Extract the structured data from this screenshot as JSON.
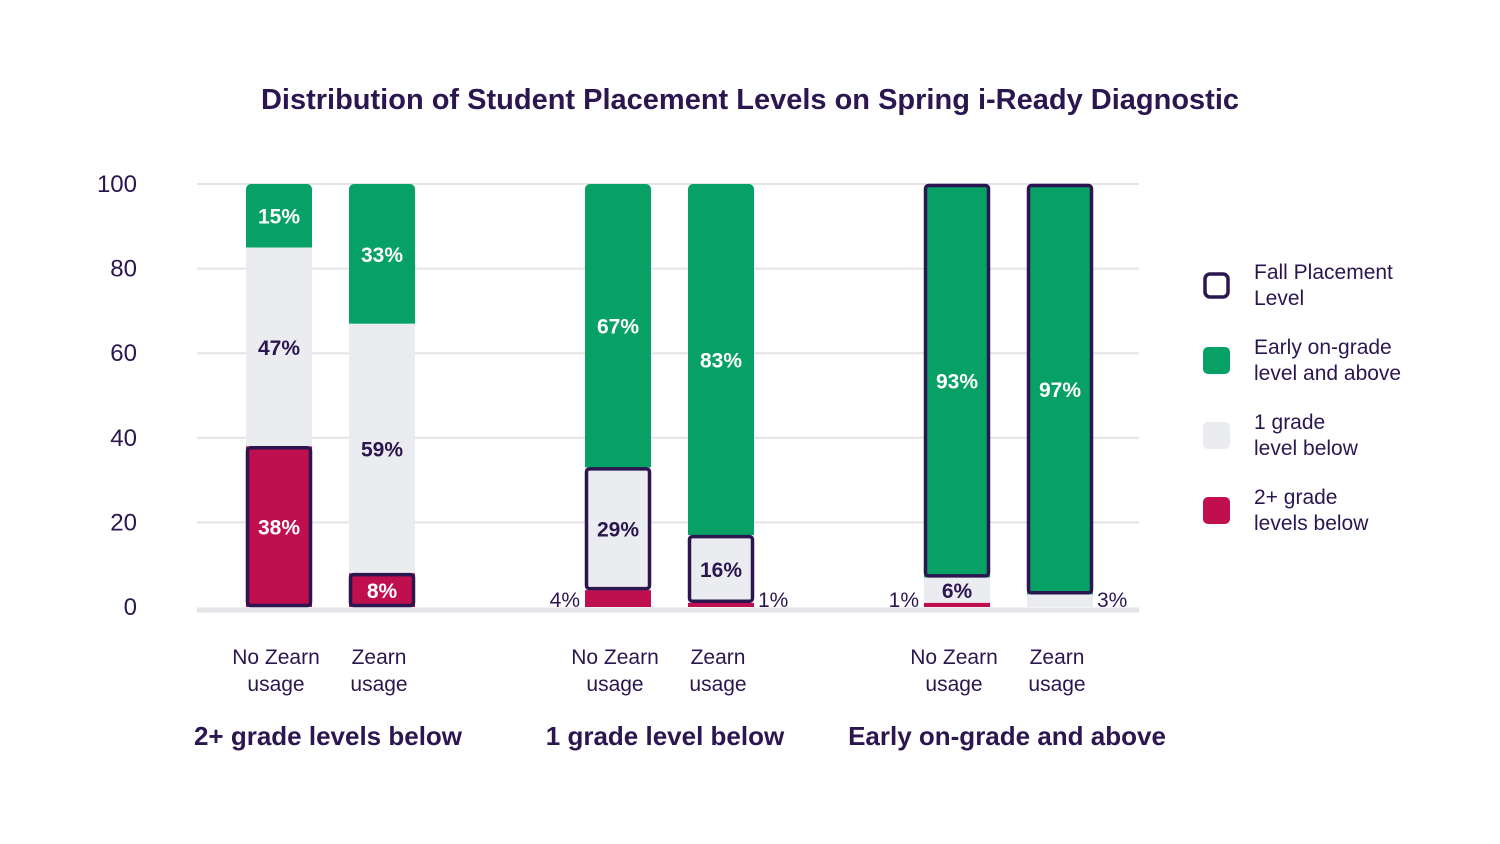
{
  "chart_data": {
    "type": "bar",
    "stacked": true,
    "title": "Distribution of Student Placement Levels on Spring i-Ready Diagnostic",
    "y_ticks": [
      "0",
      "20",
      "40",
      "60",
      "80",
      "100"
    ],
    "ylim": [
      0,
      100
    ],
    "grid": true,
    "legend_position": "right",
    "colors": {
      "early_on_grade": "#07a065",
      "one_below": "#eaecf0",
      "two_plus_below": "#bf0f4e",
      "outline": "#2b1650"
    },
    "legend": [
      {
        "key": "fall",
        "label_lines": [
          "Fall Placement",
          "Level"
        ]
      },
      {
        "key": "early_on_grade",
        "label_lines": [
          "Early on-grade",
          "level and above"
        ]
      },
      {
        "key": "one_below",
        "label_lines": [
          "1 grade",
          "level below"
        ]
      },
      {
        "key": "two_plus_below",
        "label_lines": [
          "2+ grade",
          "levels below"
        ]
      }
    ],
    "groups": [
      {
        "label": "2+ grade levels below",
        "fall_placement": "two_plus_below",
        "bars": [
          {
            "label_lines": [
              "No Zearn",
              "usage"
            ],
            "two_plus_below": 38,
            "one_below": 47,
            "early_on_grade": 15,
            "labels": {
              "two_plus_below": "38%",
              "one_below": "47%",
              "early_on_grade": "15%"
            }
          },
          {
            "label_lines": [
              "Zearn",
              "usage"
            ],
            "two_plus_below": 8,
            "one_below": 59,
            "early_on_grade": 33,
            "labels": {
              "two_plus_below": "8%",
              "one_below": "59%",
              "early_on_grade": "33%"
            }
          }
        ]
      },
      {
        "label": "1 grade level below",
        "fall_placement": "one_below",
        "bars": [
          {
            "label_lines": [
              "No Zearn",
              "usage"
            ],
            "two_plus_below": 4,
            "one_below": 29,
            "early_on_grade": 67,
            "labels": {
              "two_plus_below": "4%",
              "one_below": "29%",
              "early_on_grade": "67%"
            }
          },
          {
            "label_lines": [
              "Zearn",
              "usage"
            ],
            "two_plus_below": 1,
            "one_below": 16,
            "early_on_grade": 83,
            "labels": {
              "two_plus_below": "1%",
              "one_below": "16%",
              "early_on_grade": "83%"
            }
          }
        ]
      },
      {
        "label": "Early on-grade and above",
        "fall_placement": "early_on_grade",
        "bars": [
          {
            "label_lines": [
              "No Zearn",
              "usage"
            ],
            "two_plus_below": 1,
            "one_below": 6,
            "early_on_grade": 93,
            "labels": {
              "two_plus_below": "1%",
              "one_below": "6%",
              "early_on_grade": "93%"
            }
          },
          {
            "label_lines": [
              "Zearn",
              "usage"
            ],
            "two_plus_below": 0,
            "one_below": 3,
            "early_on_grade": 97,
            "labels": {
              "one_below": "3%",
              "early_on_grade": "97%"
            }
          }
        ]
      }
    ]
  }
}
